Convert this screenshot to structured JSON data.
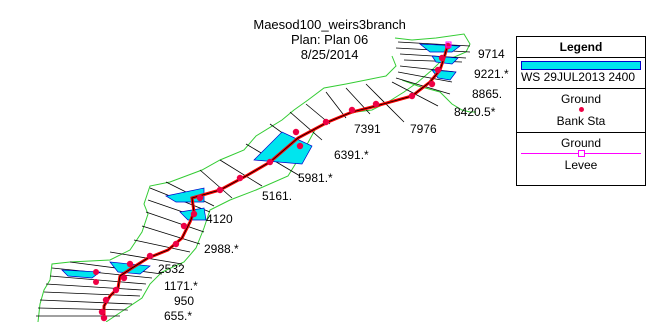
{
  "header": {
    "project": "Maesod100_weirs3branch",
    "plan": "Plan: Plan 06",
    "date": "8/25/2014"
  },
  "stations": [
    "9714",
    "9221.*",
    "8865.",
    "8420.5*",
    "7976",
    "7391",
    "6391.*",
    "5981.*",
    "5161.",
    "4120",
    "2988.*",
    "2532",
    "1171.*",
    "950",
    "655.*"
  ],
  "legend": {
    "title": "Legend",
    "water_surface": "WS 29JUL2013 2400",
    "ground": "Ground",
    "bank_sta": "Bank Sta",
    "ground2": "Ground",
    "levee": "Levee"
  },
  "colors": {
    "water": "#00e5ee",
    "bank": "#ee0044",
    "boundary": "#33cc33",
    "xs_line": "#000000",
    "river": "#ff0000",
    "levee": "#ff00ff",
    "blue_xs": "#0000cc"
  }
}
